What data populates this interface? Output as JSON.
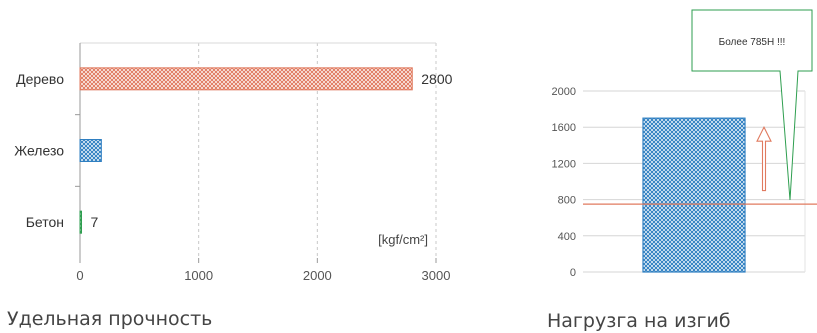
{
  "chart_data": [
    {
      "type": "bar",
      "orientation": "horizontal",
      "categories": [
        "Дерево",
        "Железо",
        "Бетон"
      ],
      "values": [
        2800,
        180,
        7
      ],
      "value_labels": [
        "2800",
        "",
        "7"
      ],
      "xlim": [
        0,
        3000
      ],
      "xticks": [
        "0",
        "1000",
        "2000",
        "3000"
      ],
      "unit_label": "[kgf/cm²]",
      "caption": "Удельная прочность",
      "grid": "vertical dashed",
      "colors": [
        "#e07a5f",
        "#2f7fc1",
        "#2e9e4f"
      ],
      "pattern": "crosshatch"
    },
    {
      "type": "bar",
      "categories": [
        ""
      ],
      "values": [
        1700
      ],
      "ylim": [
        0,
        2000
      ],
      "yticks": [
        "0",
        "400",
        "800",
        "1200",
        "1600",
        "2000"
      ],
      "reference_line": 750,
      "arrow": {
        "from": 900,
        "to": 1600
      },
      "callout": "Более 785Н !!!",
      "caption": "Нагрузга на изгиб",
      "grid": "horizontal solid",
      "bar_color": "#2f7fc1",
      "line_color": "#e07a5f",
      "callout_color": "#2e9e4f"
    }
  ]
}
